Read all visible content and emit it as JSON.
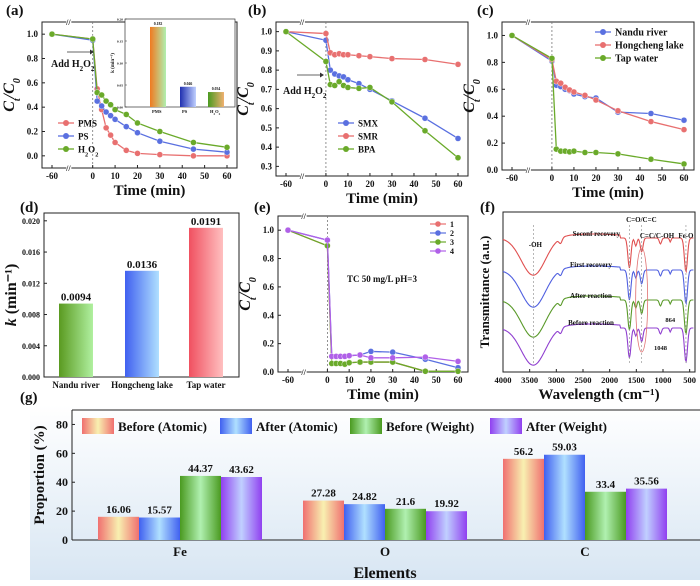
{
  "chart_data": [
    {
      "id": "a",
      "panel_label": "(a)",
      "type": "line",
      "xlabel": "Time (min)",
      "ylabel": "C_t/C_0",
      "xticks": [
        "-60",
        "0",
        "10",
        "20",
        "30",
        "40",
        "50",
        "60"
      ],
      "yticks": [
        "0.0",
        "0.2",
        "0.4",
        "0.6",
        "0.8",
        "1.0"
      ],
      "ylim": [
        -0.1,
        1.1
      ],
      "annotation": "Add H2O2",
      "legend": "middle-left",
      "x": [
        -60,
        0,
        2,
        4,
        6,
        8,
        10,
        15,
        20,
        30,
        45,
        60
      ],
      "series": [
        {
          "name": "PMS",
          "color": "#e87070",
          "values": [
            1.0,
            0.96,
            0.55,
            0.38,
            0.23,
            0.17,
            0.11,
            0.045,
            0.02,
            0.01,
            0.0,
            0.0
          ]
        },
        {
          "name": "PS",
          "color": "#5a70e0",
          "values": [
            1.0,
            0.95,
            0.45,
            0.41,
            0.36,
            0.33,
            0.3,
            0.24,
            0.19,
            0.12,
            0.055,
            0.03
          ]
        },
        {
          "name": "H2O2",
          "color": "#6aaa2a",
          "values": [
            1.0,
            0.96,
            0.52,
            0.5,
            0.45,
            0.42,
            0.38,
            0.34,
            0.27,
            0.2,
            0.11,
            0.07
          ]
        }
      ],
      "inset": {
        "type": "bar",
        "ylabel": "k (min^-1)",
        "ylim": [
          0,
          0.2
        ],
        "yticks": [
          "0.00",
          "0.05",
          "0.10",
          "0.15",
          "0.20"
        ],
        "categories": [
          "PMS",
          "PS",
          "H2O2"
        ],
        "values": [
          0.182,
          0.046,
          0.034
        ],
        "labels": [
          "0.182",
          "0.046",
          "0.034"
        ]
      }
    },
    {
      "id": "b",
      "panel_label": "(b)",
      "type": "line",
      "xlabel": "Time (min)",
      "ylabel": "C_t/C_0",
      "xticks": [
        "-60",
        "0",
        "10",
        "20",
        "30",
        "40",
        "50",
        "60"
      ],
      "yticks": [
        "0.3",
        "0.4",
        "0.5",
        "0.6",
        "0.7",
        "0.8",
        "0.9",
        "1.0"
      ],
      "ylim": [
        0.25,
        1.05
      ],
      "annotation": "Add H2O2",
      "legend": "bottom-center",
      "x": [
        -60,
        0,
        2,
        4,
        6,
        8,
        10,
        15,
        20,
        30,
        45,
        60
      ],
      "series": [
        {
          "name": "SMX",
          "color": "#5a70e0",
          "values": [
            1.0,
            0.955,
            0.8,
            0.78,
            0.77,
            0.765,
            0.75,
            0.73,
            0.7,
            0.64,
            0.55,
            0.445
          ]
        },
        {
          "name": "SMR",
          "color": "#e87070",
          "values": [
            1.0,
            0.99,
            0.89,
            0.88,
            0.885,
            0.88,
            0.88,
            0.875,
            0.87,
            0.86,
            0.855,
            0.83
          ]
        },
        {
          "name": "BPA",
          "color": "#6aaa2a",
          "values": [
            1.0,
            0.845,
            0.725,
            0.72,
            0.74,
            0.72,
            0.71,
            0.705,
            0.71,
            0.635,
            0.485,
            0.345
          ]
        }
      ]
    },
    {
      "id": "c",
      "panel_label": "(c)",
      "type": "line",
      "xlabel": "Time (min)",
      "ylabel": "C_t/C_0",
      "xticks": [
        "-60",
        "0",
        "10",
        "20",
        "30",
        "40",
        "50",
        "60"
      ],
      "yticks": [
        "0.0",
        "0.2",
        "0.4",
        "0.6",
        "0.8",
        "1.0"
      ],
      "ylim": [
        0,
        1.1
      ],
      "legend": "top-right",
      "x": [
        -60,
        0,
        2,
        4,
        6,
        8,
        10,
        15,
        20,
        30,
        45,
        60
      ],
      "series": [
        {
          "name": "Nandu river",
          "color": "#5a70e0",
          "values": [
            1.0,
            0.81,
            0.63,
            0.62,
            0.6,
            0.59,
            0.565,
            0.545,
            0.535,
            0.43,
            0.42,
            0.37
          ]
        },
        {
          "name": "Hongcheng lake",
          "color": "#e87070",
          "values": [
            1.0,
            0.82,
            0.66,
            0.645,
            0.615,
            0.595,
            0.58,
            0.555,
            0.52,
            0.44,
            0.36,
            0.3
          ]
        },
        {
          "name": "Tap water",
          "color": "#6aaa2a",
          "values": [
            1.0,
            0.83,
            0.155,
            0.14,
            0.14,
            0.135,
            0.14,
            0.13,
            0.13,
            0.12,
            0.08,
            0.045
          ]
        }
      ]
    },
    {
      "id": "d",
      "panel_label": "(d)",
      "type": "bar",
      "xlabel": "",
      "ylabel": "k (min^-1)",
      "yticks": [
        "0.000",
        "0.004",
        "0.008",
        "0.012",
        "0.016",
        "0.020"
      ],
      "ylim": [
        0,
        0.021
      ],
      "categories": [
        "Nandu river",
        "Hongcheng lake",
        "Tap water"
      ],
      "values": [
        0.0094,
        0.0136,
        0.0191
      ],
      "labels": [
        "0.0094",
        "0.0136",
        "0.0191"
      ],
      "colors": [
        "#6aaa2a",
        "#4f6cf0",
        "#f06070"
      ]
    },
    {
      "id": "e",
      "panel_label": "(e)",
      "type": "line",
      "xlabel": "Time (min)",
      "ylabel": "C_t/C_0",
      "xticks": [
        "-60",
        "0",
        "10",
        "20",
        "30",
        "40",
        "50",
        "60"
      ],
      "yticks": [
        "0.0",
        "0.2",
        "0.4",
        "0.6",
        "0.8",
        "1.0"
      ],
      "ylim": [
        0,
        1.1
      ],
      "annotation": "TC 50 mg/L  pH=3",
      "legend": "top-right",
      "x": [
        -60,
        0,
        2,
        4,
        6,
        8,
        10,
        15,
        20,
        30,
        45,
        60
      ],
      "series": [
        {
          "name": "1",
          "color": "#e87070",
          "values": [
            1.0,
            0.89,
            0.06,
            0.06,
            0.06,
            0.055,
            0.065,
            0.07,
            0.07,
            0.07,
            0.005,
            0.005
          ]
        },
        {
          "name": "2",
          "color": "#5a70e0",
          "values": [
            1.0,
            0.93,
            0.11,
            0.11,
            0.11,
            0.11,
            0.115,
            0.12,
            0.145,
            0.14,
            0.09,
            0.03
          ]
        },
        {
          "name": "3",
          "color": "#6aaa2a",
          "values": [
            1.0,
            0.89,
            0.06,
            0.06,
            0.06,
            0.055,
            0.065,
            0.07,
            0.07,
            0.07,
            0.005,
            0.005
          ]
        },
        {
          "name": "4",
          "color": "#b060e8",
          "values": [
            1.0,
            0.93,
            0.11,
            0.11,
            0.11,
            0.11,
            0.115,
            0.12,
            0.1,
            0.1,
            0.105,
            0.075
          ]
        }
      ]
    },
    {
      "id": "f",
      "panel_label": "(f)",
      "type": "line",
      "xlabel": "Wavelength (cm^-1)",
      "ylabel": "Transmittance (a.u.)",
      "xticks": [
        "4000",
        "3500",
        "3000",
        "2500",
        "2000",
        "1500",
        "1000",
        "500"
      ],
      "xlim": [
        4000,
        400
      ],
      "series": [
        {
          "name": "Seconf recovery",
          "color": "#e05050"
        },
        {
          "name": "First recovery",
          "color": "#5060e0"
        },
        {
          "name": "After reaction",
          "color": "#5a9a2a"
        },
        {
          "name": "Before reaction",
          "color": "#9040d0"
        }
      ],
      "annotations": [
        "-OH",
        "C=O/C=C",
        "C=C/C-OH",
        "Fe-O",
        "864",
        "1048"
      ]
    },
    {
      "id": "g",
      "panel_label": "(g)",
      "type": "bar",
      "xlabel": "Elements",
      "ylabel": "Proportion (%)",
      "yticks": [
        "0",
        "20",
        "40",
        "60",
        "80"
      ],
      "ylim": [
        0,
        90
      ],
      "legend": "top",
      "categories": [
        "Fe",
        "O",
        "C"
      ],
      "series": [
        {
          "name": "Before (Atomic)",
          "color": "#f08080",
          "values": [
            16.06,
            27.28,
            56.2
          ],
          "labels": [
            "16.06",
            "27.28",
            "56.2"
          ]
        },
        {
          "name": "After (Atomic)",
          "color": "#5a80f0",
          "values": [
            15.57,
            24.82,
            59.03
          ],
          "labels": [
            "15.57",
            "24.82",
            "59.03"
          ]
        },
        {
          "name": "Before (Weight)",
          "color": "#6ab040",
          "values": [
            44.37,
            21.6,
            33.4
          ],
          "labels": [
            "44.37",
            "21.6",
            "33.4"
          ]
        },
        {
          "name": "After (Weight)",
          "color": "#a060f0",
          "values": [
            43.62,
            19.92,
            35.56
          ],
          "labels": [
            "43.62",
            "19.92",
            "35.56"
          ]
        }
      ]
    }
  ]
}
